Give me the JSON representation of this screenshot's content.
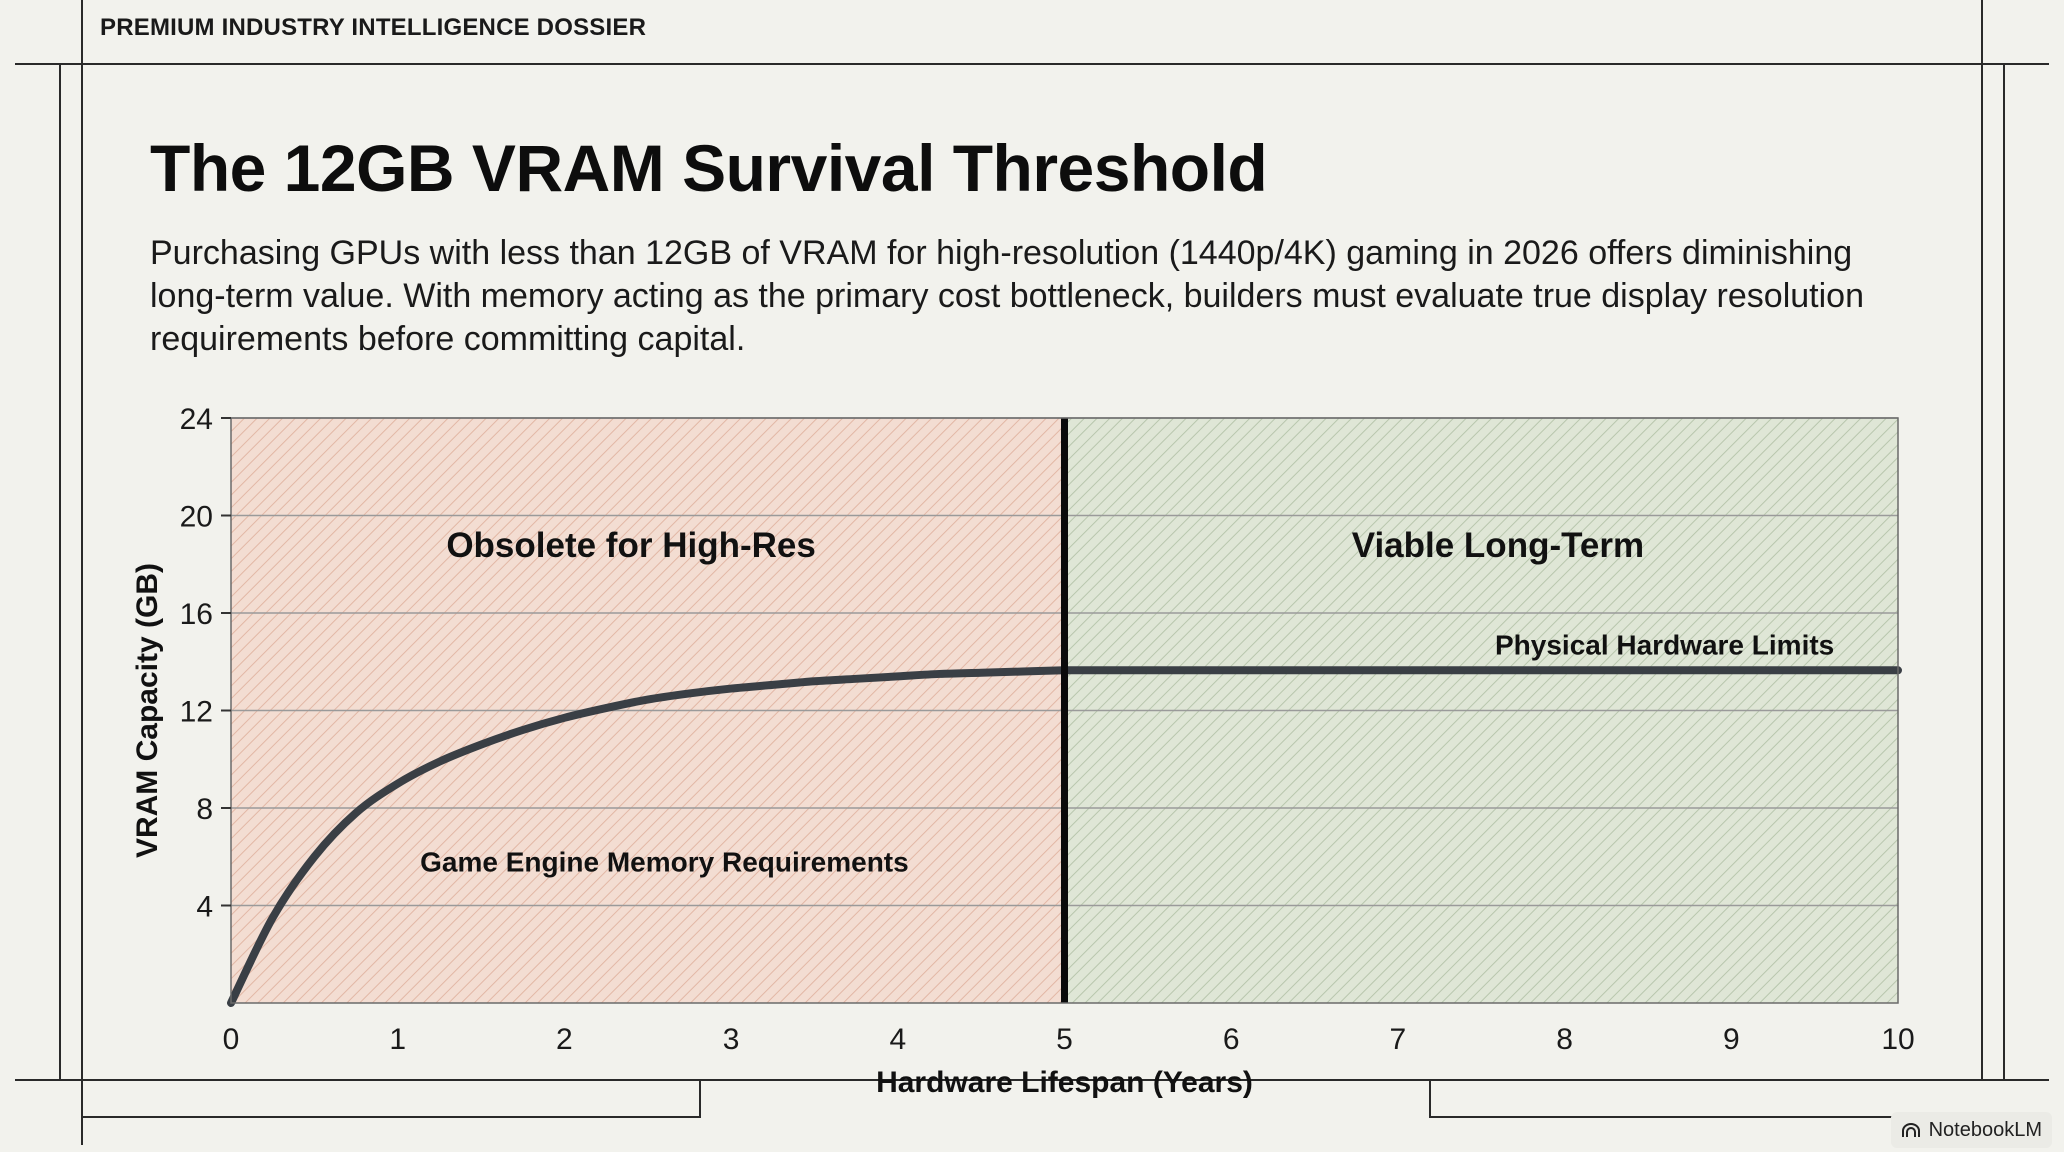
{
  "header": {
    "label": "PREMIUM INDUSTRY INTELLIGENCE DOSSIER"
  },
  "title": "The 12GB VRAM Survival Threshold",
  "subtitle": "Purchasing GPUs with less than 12GB of VRAM for high-resolution (1440p/4K) gaming in 2026 offers diminishing long-term value. With memory acting as the primary cost bottleneck, builders must evaluate true display resolution requirements before committing capital.",
  "badge": {
    "label": "NotebookLM",
    "icon": "notebooklm-logo-icon"
  },
  "colors": {
    "obsolete_zone": "#f3ddd2",
    "viable_zone": "#dfe6d6",
    "curve": "#3a3f45",
    "threshold_line": "#0a0a0a",
    "grid": "#9a9a9a"
  },
  "chart_data": {
    "type": "line",
    "title": "",
    "xlabel": "Hardware Lifespan (Years)",
    "ylabel": "VRAM Capacity (GB)",
    "xlim": [
      0,
      10
    ],
    "ylim": [
      0,
      24
    ],
    "x_ticks": [
      0,
      1,
      2,
      3,
      4,
      5,
      6,
      7,
      8,
      9,
      10
    ],
    "y_ticks": [
      4,
      8,
      12,
      16,
      20,
      24
    ],
    "grid": "horizontal",
    "threshold_x": 5,
    "regions": [
      {
        "label": "Obsolete for High-Res",
        "x_range": [
          0,
          5
        ],
        "label_pos": [
          2.4,
          18.8
        ]
      },
      {
        "label": "Viable Long-Term",
        "x_range": [
          5,
          10
        ],
        "label_pos": [
          7.6,
          18.8
        ]
      }
    ],
    "series": [
      {
        "name": "Game Engine Memory Requirements",
        "label_pos": [
          2.6,
          5.8
        ],
        "x": [
          0,
          0.25,
          0.5,
          0.75,
          1,
          1.25,
          1.5,
          1.75,
          2,
          2.25,
          2.5,
          2.75,
          3,
          3.25,
          3.5,
          3.75,
          4,
          4.25,
          4.5,
          4.75,
          5
        ],
        "y": [
          0,
          3.5,
          6.0,
          7.8,
          9.0,
          9.9,
          10.6,
          11.2,
          11.7,
          12.1,
          12.45,
          12.7,
          12.9,
          13.05,
          13.2,
          13.3,
          13.4,
          13.5,
          13.55,
          13.6,
          13.65
        ]
      },
      {
        "name": "Physical Hardware Limits",
        "label_pos": [
          8.6,
          14.7
        ],
        "x": [
          5,
          10
        ],
        "y": [
          13.65,
          13.65
        ]
      }
    ]
  }
}
